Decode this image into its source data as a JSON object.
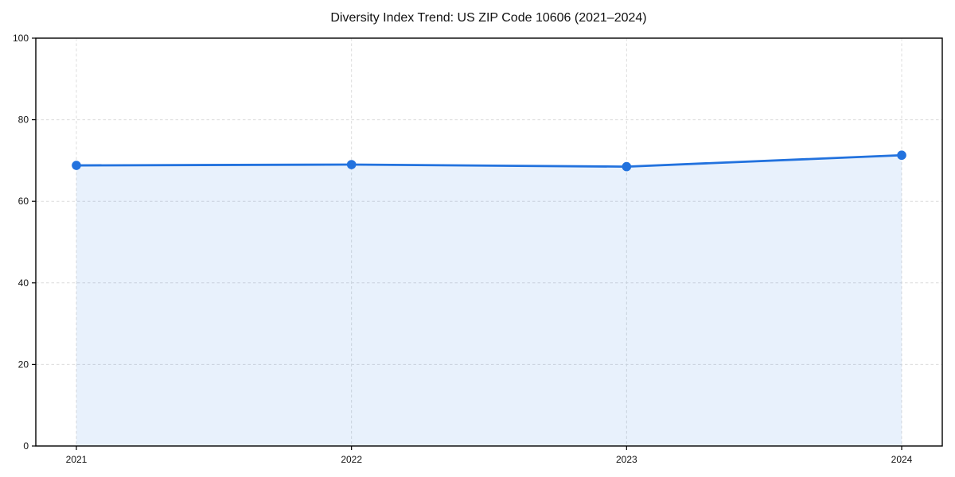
{
  "figure": {
    "background": "#ffffff"
  },
  "chart_data": {
    "type": "line",
    "title": "Diversity Index Trend: US ZIP Code 10606 (2021–2024)",
    "categories": [
      "2021",
      "2022",
      "2023",
      "2024"
    ],
    "series": [
      {
        "name": "Diversity Index",
        "values": [
          68.8,
          69.0,
          68.5,
          71.3
        ]
      }
    ],
    "xlabel": "",
    "ylabel": "",
    "ylim": [
      0,
      100
    ],
    "yticks": [
      0,
      20,
      40,
      60,
      80,
      100
    ],
    "grid": true,
    "grid_style": "dashed",
    "legend_position": "none",
    "marker": "circle",
    "area_fill": true,
    "colors": {
      "line": "#2272de",
      "marker": "#2272de",
      "area": "rgba(34,114,222,0.10)",
      "grid": "#dcdcdc",
      "spine": "#000000",
      "text": "#111111",
      "background": "#ffffff"
    }
  }
}
